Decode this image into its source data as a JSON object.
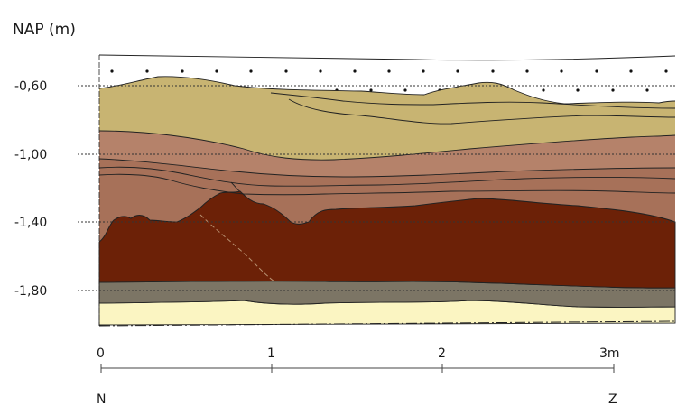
{
  "axis_title": "NAP (m)",
  "depth_levels": [
    "-0,60",
    "-1,00",
    "-1,40",
    "-1,80"
  ],
  "distance_ticks": [
    "0",
    "1",
    "2",
    "3m"
  ],
  "orientation": {
    "left": "N",
    "right": "Z"
  },
  "colors": {
    "top_sand": "#c8b472",
    "light_brown": "#b5826a",
    "mid_brown": "#a77159",
    "dark_red_brown": "#6c2107",
    "grey_clay": "#7c7565",
    "pale_sand": "#fbf5c2"
  },
  "chart_data": {
    "type": "cross-section",
    "ylabel": "NAP (m)",
    "y_ticks": [
      -0.6,
      -1.0,
      -1.4,
      -1.8
    ],
    "x_ticks": [
      0,
      1,
      2,
      3
    ],
    "x_unit": "m",
    "layers": [
      {
        "name": "top_sand",
        "color": "#c8b472"
      },
      {
        "name": "light_brown",
        "color": "#b5826a"
      },
      {
        "name": "mid_brown",
        "color": "#a77159"
      },
      {
        "name": "dark_red_brown",
        "color": "#6c2107"
      },
      {
        "name": "grey_clay",
        "color": "#7c7565"
      },
      {
        "name": "pale_sand",
        "color": "#fbf5c2"
      }
    ]
  }
}
